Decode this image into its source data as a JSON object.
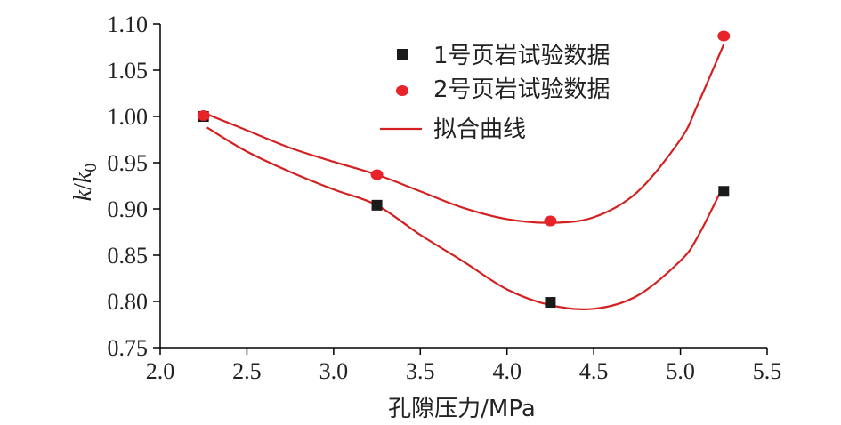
{
  "chart_data": {
    "type": "scatter",
    "xlabel": "孔隙压力/MPa",
    "ylabel": {
      "main": "k",
      "slash": "/",
      "sub_base": "k",
      "sub": "0"
    },
    "xlim": [
      2.0,
      5.5
    ],
    "ylim": [
      0.75,
      1.1
    ],
    "xticks": [
      "2.0",
      "2.5",
      "3.0",
      "3.5",
      "4.0",
      "4.5",
      "5.0",
      "5.5"
    ],
    "yticks": [
      "0.75",
      "0.80",
      "0.85",
      "0.90",
      "0.95",
      "1.00",
      "1.05",
      "1.10"
    ],
    "x": [
      2.25,
      3.25,
      4.25,
      5.25
    ],
    "legend_position": "top-right",
    "series": [
      {
        "name": "1号页岩试验数据",
        "marker": "square",
        "color": "#1a1a1a",
        "values": [
          1.0,
          0.904,
          0.799,
          0.919
        ]
      },
      {
        "name": "2号页岩试验数据",
        "marker": "circle",
        "color": "#e8232a",
        "values": [
          1.001,
          0.937,
          0.887,
          1.087
        ]
      }
    ],
    "fit": {
      "name": "拟合曲线",
      "color": "#d42020",
      "curves": [
        {
          "x": [
            2.27,
            2.5,
            2.75,
            3.0,
            3.25,
            3.5,
            3.75,
            4.0,
            4.25,
            4.5,
            4.75,
            5.0,
            5.1,
            5.24
          ],
          "y": [
            0.988,
            0.962,
            0.94,
            0.921,
            0.904,
            0.872,
            0.843,
            0.813,
            0.796,
            0.792,
            0.806,
            0.844,
            0.87,
            0.922
          ]
        },
        {
          "x": [
            2.25,
            2.5,
            2.75,
            3.0,
            3.25,
            3.5,
            3.75,
            4.0,
            4.25,
            4.5,
            4.75,
            5.0,
            5.1,
            5.25
          ],
          "y": [
            1.004,
            0.985,
            0.966,
            0.951,
            0.937,
            0.919,
            0.901,
            0.889,
            0.885,
            0.891,
            0.918,
            0.975,
            1.013,
            1.078
          ]
        }
      ]
    }
  }
}
